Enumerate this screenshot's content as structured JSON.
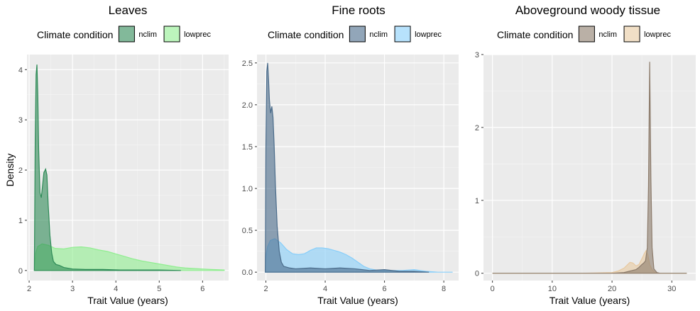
{
  "y_axis_label": "Density",
  "legend_title": "Climate condition",
  "chart_data": [
    {
      "type": "area",
      "title": "Leaves",
      "xlabel": "Trait Value (years)",
      "ylabel": "Density",
      "xlim": [
        1.95,
        6.6
      ],
      "ylim": [
        -0.2,
        4.3
      ],
      "xticks": [
        2,
        3,
        4,
        5,
        6
      ],
      "yticks": [
        0,
        1,
        2,
        3,
        4
      ],
      "legend_title": "Climate condition",
      "legend_position": "top",
      "grid": true,
      "series": [
        {
          "name": "nclim",
          "color": "#2e8b57",
          "x": [
            2.12,
            2.14,
            2.16,
            2.18,
            2.2,
            2.22,
            2.25,
            2.28,
            2.31,
            2.34,
            2.38,
            2.41,
            2.44,
            2.48,
            2.52,
            2.56,
            2.62,
            2.7,
            2.8,
            3.0,
            3.3,
            3.7,
            4.1,
            4.5,
            5.0,
            5.5
          ],
          "y": [
            0.0,
            2.6,
            3.9,
            4.1,
            3.5,
            2.4,
            1.55,
            1.45,
            1.7,
            1.95,
            2.02,
            1.9,
            1.3,
            0.7,
            0.35,
            0.18,
            0.12,
            0.1,
            0.06,
            0.03,
            0.02,
            0.02,
            0.01,
            0.01,
            0.01,
            0.0
          ]
        },
        {
          "name": "lowprec",
          "color": "#90ee90",
          "x": [
            2.12,
            2.15,
            2.2,
            2.3,
            2.45,
            2.6,
            2.8,
            3.0,
            3.2,
            3.4,
            3.6,
            3.8,
            4.0,
            4.2,
            4.4,
            4.6,
            4.8,
            5.0,
            5.2,
            5.4,
            5.6,
            5.8,
            6.0,
            6.2,
            6.5
          ],
          "y": [
            0.0,
            0.35,
            0.48,
            0.53,
            0.5,
            0.44,
            0.43,
            0.46,
            0.47,
            0.45,
            0.41,
            0.38,
            0.33,
            0.28,
            0.23,
            0.19,
            0.16,
            0.13,
            0.1,
            0.07,
            0.05,
            0.04,
            0.03,
            0.02,
            0.01
          ]
        }
      ]
    },
    {
      "type": "area",
      "title": "Fine roots",
      "xlabel": "Trait Value (years)",
      "ylabel": "",
      "xlim": [
        1.7,
        8.5
      ],
      "ylim": [
        -0.1,
        2.6
      ],
      "xticks": [
        2,
        4,
        6,
        8
      ],
      "yticks": [
        0.0,
        0.5,
        1.0,
        1.5,
        2.0,
        2.5
      ],
      "legend_title": "Climate condition",
      "legend_position": "top",
      "grid": true,
      "series": [
        {
          "name": "nclim",
          "color": "#4a6b8a",
          "x": [
            1.98,
            2.0,
            2.03,
            2.06,
            2.09,
            2.12,
            2.16,
            2.2,
            2.24,
            2.28,
            2.32,
            2.38,
            2.45,
            2.52,
            2.6,
            2.8,
            3.0,
            3.5,
            4.0,
            4.5,
            5.0,
            5.5,
            6.0,
            6.5,
            7.0,
            7.5
          ],
          "y": [
            0.0,
            1.5,
            2.4,
            2.5,
            2.3,
            2.05,
            1.9,
            1.98,
            1.85,
            1.5,
            1.05,
            0.55,
            0.25,
            0.12,
            0.07,
            0.05,
            0.04,
            0.05,
            0.04,
            0.05,
            0.04,
            0.02,
            0.03,
            0.01,
            0.01,
            0.0
          ]
        },
        {
          "name": "lowprec",
          "color": "#87cefa",
          "x": [
            1.98,
            2.0,
            2.05,
            2.15,
            2.3,
            2.5,
            2.7,
            2.9,
            3.1,
            3.3,
            3.5,
            3.7,
            3.9,
            4.1,
            4.3,
            4.5,
            4.7,
            4.9,
            5.1,
            5.3,
            5.5,
            5.8,
            6.2,
            6.6,
            7.0,
            7.4,
            7.8,
            8.3
          ],
          "y": [
            0.0,
            0.18,
            0.3,
            0.38,
            0.4,
            0.35,
            0.27,
            0.22,
            0.21,
            0.22,
            0.26,
            0.29,
            0.29,
            0.28,
            0.26,
            0.24,
            0.21,
            0.17,
            0.12,
            0.07,
            0.04,
            0.02,
            0.02,
            0.02,
            0.03,
            0.01,
            0.0,
            0.0
          ]
        }
      ]
    },
    {
      "type": "area",
      "title": "Aboveground woody tissue",
      "xlabel": "Trait Value (years)",
      "ylabel": "",
      "xlim": [
        -1.5,
        34
      ],
      "ylim": [
        -0.1,
        3.0
      ],
      "xticks": [
        0,
        10,
        20,
        30
      ],
      "yticks": [
        0,
        1,
        2,
        3
      ],
      "legend_title": "Climate condition",
      "legend_position": "top",
      "grid": true,
      "series": [
        {
          "name": "nclim",
          "color": "#8c7b6b",
          "x": [
            0,
            5,
            10,
            15,
            20,
            22,
            23,
            24,
            24.5,
            25,
            25.3,
            25.6,
            25.9,
            26.1,
            26.3,
            26.5,
            26.7,
            27.0,
            27.5,
            28,
            30,
            32.5
          ],
          "y": [
            0.0,
            0.0,
            0.0,
            0.0,
            0.0,
            0.01,
            0.03,
            0.05,
            0.08,
            0.12,
            0.14,
            0.17,
            0.35,
            1.2,
            2.9,
            1.3,
            0.35,
            0.06,
            0.01,
            0.0,
            0.0,
            0.0
          ]
        },
        {
          "name": "lowprec",
          "color": "#e8c9a0",
          "x": [
            0,
            5,
            10,
            15,
            20,
            21,
            22,
            22.5,
            23,
            23.5,
            24,
            24.5,
            25,
            25.4,
            25.7,
            26.0,
            26.3,
            26.7,
            27.2,
            28,
            30,
            32.5
          ],
          "y": [
            0.0,
            0.0,
            0.0,
            0.0,
            0.01,
            0.03,
            0.07,
            0.11,
            0.15,
            0.14,
            0.1,
            0.12,
            0.2,
            0.27,
            0.31,
            0.25,
            0.12,
            0.05,
            0.01,
            0.0,
            0.0,
            0.0
          ]
        }
      ]
    }
  ]
}
